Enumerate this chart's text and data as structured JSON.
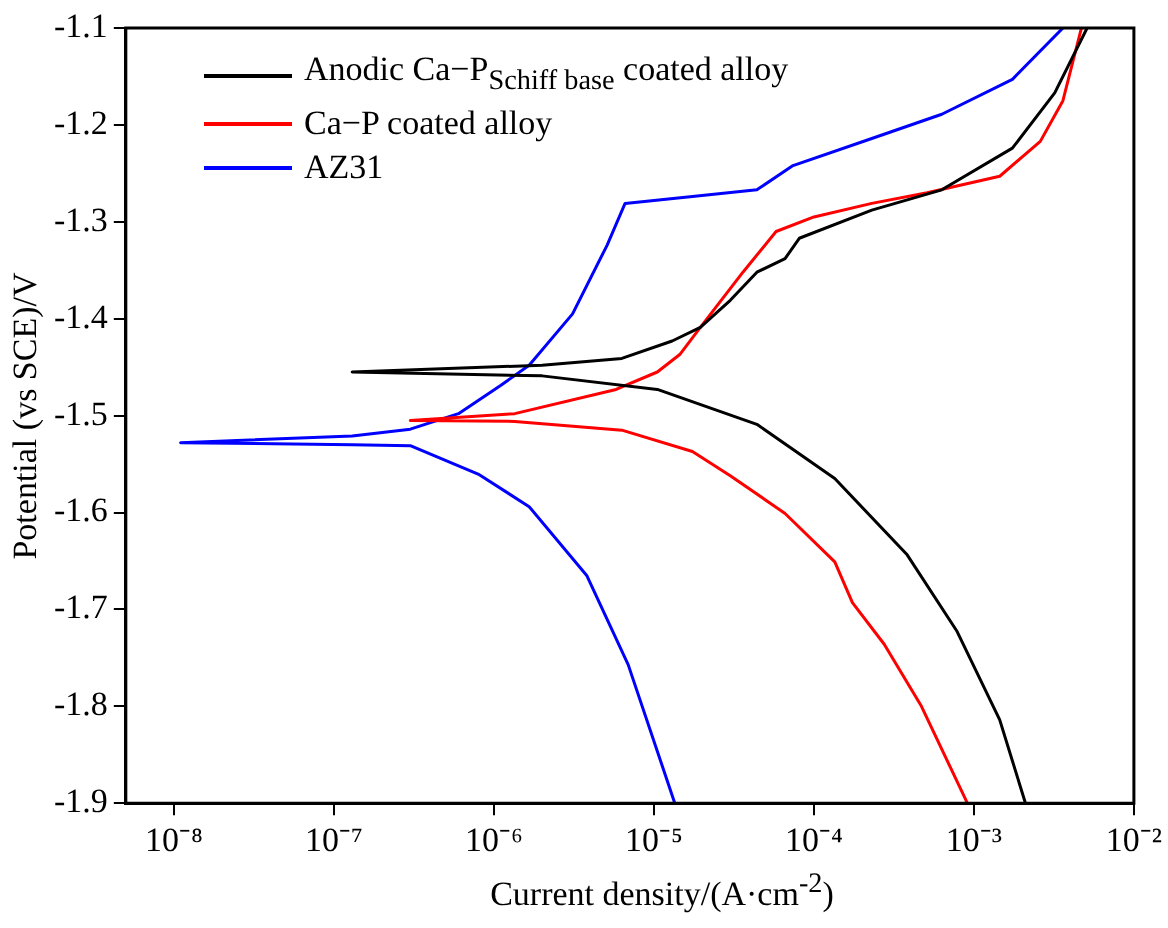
{
  "chart_data": {
    "type": "line",
    "xlabel": "Current density/(A·cm$^{-2}$)",
    "ylabel": "Potential (vs SCE)/V",
    "log": "x",
    "xlim": [
      5e-09,
      0.01
    ],
    "xticks": [
      {
        "value": 1e-08,
        "label": "10⁻⁸"
      },
      {
        "value": 1e-07,
        "label": "10⁻⁷"
      },
      {
        "value": 1e-06,
        "label": "10⁻⁶"
      },
      {
        "value": 1e-05,
        "label": "10⁻⁵"
      },
      {
        "value": 0.0001,
        "label": "10⁻⁴"
      },
      {
        "value": 0.001,
        "label": "10⁻³"
      },
      {
        "value": 0.01,
        "label": "10⁻²"
      }
    ],
    "ylim": [
      -1.9,
      -1.1
    ],
    "yticks": [
      -1.9,
      -1.8,
      -1.7,
      -1.6,
      -1.5,
      -1.4,
      -1.3,
      -1.2,
      -1.1
    ],
    "grid": false,
    "legend": "top left",
    "marker": "none",
    "line_style": "solid",
    "series": [
      {
        "name": "Anodic Ca−P$_{Schiff base}$ coated alloy",
        "color": "#000000",
        "x": [
          0.0021,
          0.00145,
          0.00078,
          0.00038,
          0.000135,
          4.4e-05,
          1.05e-05,
          2e-06,
          1.3e-07,
          2e-06,
          6.3e-06,
          1.3e-05,
          1.95e-05,
          3e-05,
          4.4e-05,
          6.6e-05,
          8.1e-05,
          0.00023,
          0.00063,
          0.00174,
          0.0032,
          0.0051
        ],
        "values": [
          -1.9,
          -1.814,
          -1.722,
          -1.643,
          -1.565,
          -1.509,
          -1.473,
          -1.459,
          -1.455,
          -1.448,
          -1.441,
          -1.423,
          -1.409,
          -1.381,
          -1.352,
          -1.338,
          -1.317,
          -1.288,
          -1.267,
          -1.224,
          -1.167,
          -1.1
        ]
      },
      {
        "name": "Ca−P coated alloy",
        "color": "#ff0000",
        "x": [
          0.00091,
          0.00047,
          0.000275,
          0.000174,
          0.000135,
          6.6e-05,
          3e-05,
          1.74e-05,
          6.3e-06,
          1.35e-06,
          3e-07,
          1.35e-06,
          5.8e-06,
          1.05e-05,
          1.45e-05,
          1.95e-05,
          3.6e-05,
          5.8e-05,
          0.0001,
          0.00023,
          0.00051,
          0.00145,
          0.0026,
          0.0036,
          0.0047
        ],
        "values": [
          -1.9,
          -1.8,
          -1.736,
          -1.693,
          -1.651,
          -1.601,
          -1.562,
          -1.537,
          -1.515,
          -1.506,
          -1.505,
          -1.498,
          -1.473,
          -1.455,
          -1.437,
          -1.409,
          -1.352,
          -1.31,
          -1.295,
          -1.281,
          -1.27,
          -1.253,
          -1.217,
          -1.175,
          -1.1
        ]
      },
      {
        "name": "AZ31",
        "color": "#0000ff",
        "x": [
          1.35e-05,
          6.9e-06,
          3.8e-06,
          1.66e-06,
          8.1e-07,
          3e-07,
          1.3e-07,
          1.1e-08,
          1.3e-07,
          3e-07,
          6e-07,
          1.1e-06,
          1.66e-06,
          3.1e-06,
          5.1e-06,
          6.6e-06,
          1.74e-05,
          4.4e-05,
          7.4e-05,
          0.00023,
          0.00063,
          0.00174,
          0.0036
        ],
        "values": [
          -1.9,
          -1.757,
          -1.665,
          -1.594,
          -1.561,
          -1.531,
          -1.53,
          -1.528,
          -1.521,
          -1.514,
          -1.498,
          -1.469,
          -1.448,
          -1.395,
          -1.324,
          -1.281,
          -1.274,
          -1.267,
          -1.242,
          -1.214,
          -1.189,
          -1.153,
          -1.1
        ]
      }
    ]
  }
}
